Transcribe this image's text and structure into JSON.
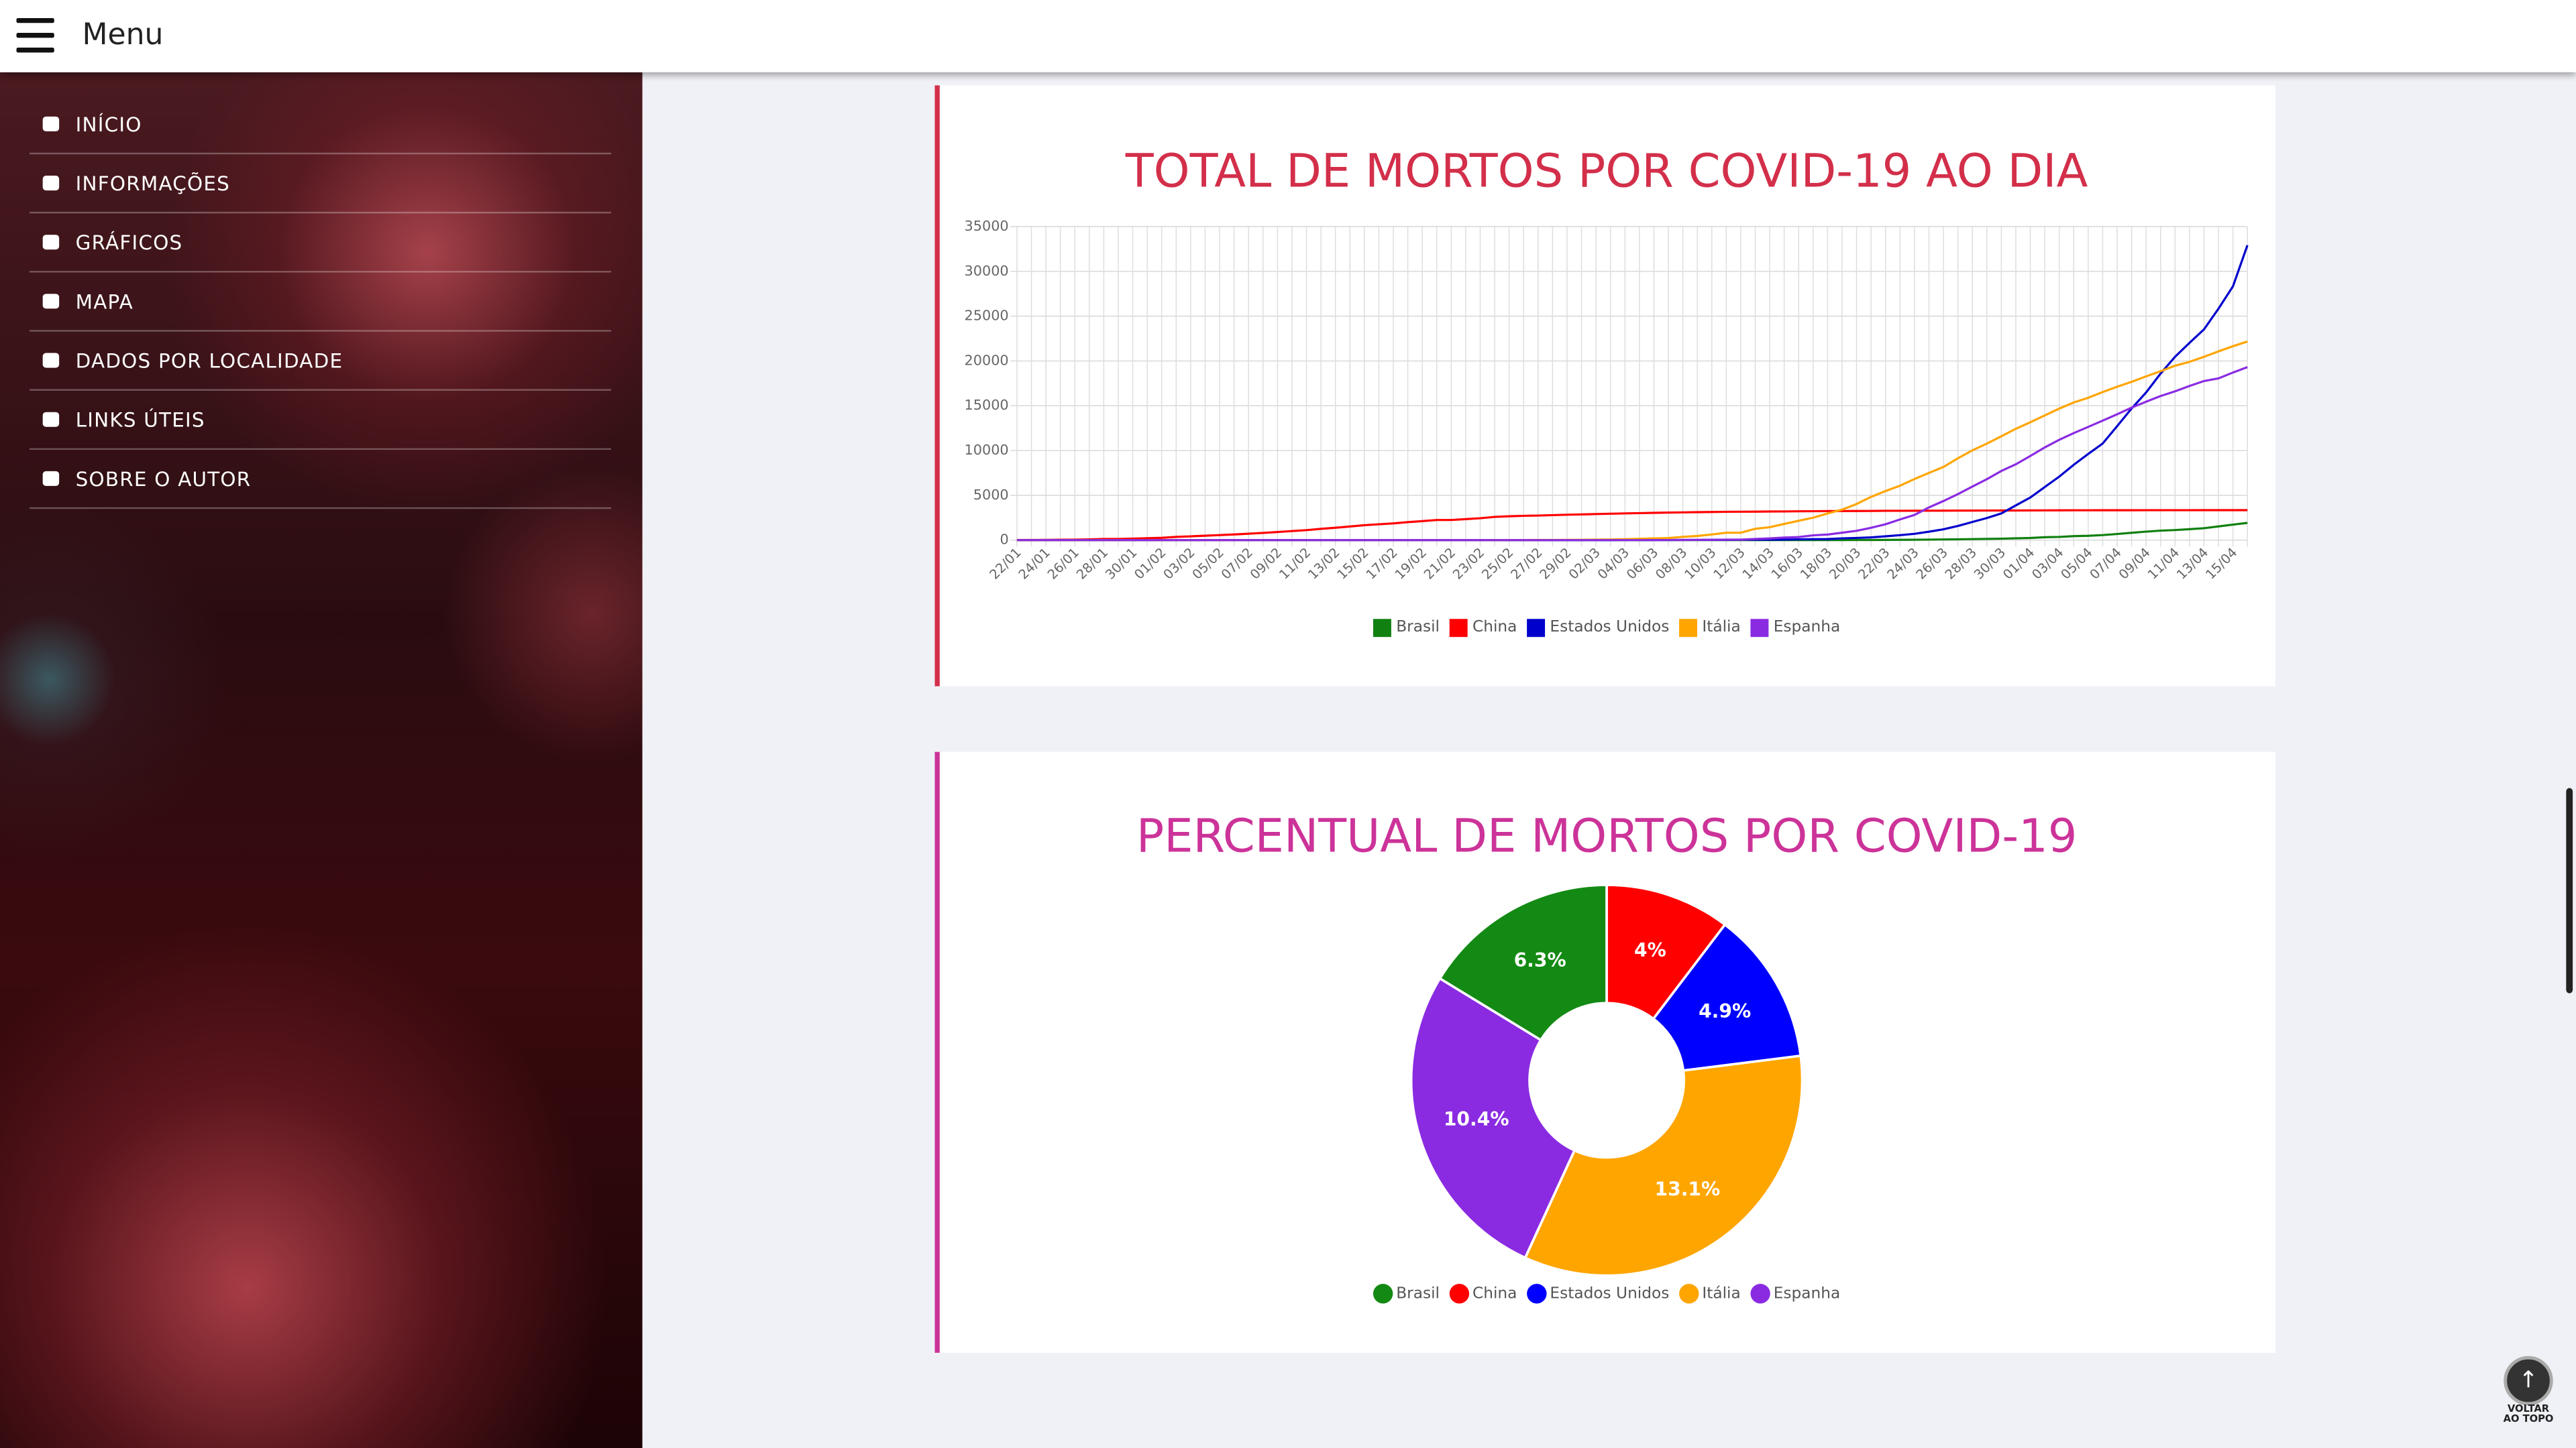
{
  "header": {
    "title": "Menu"
  },
  "nav": {
    "items": [
      "INÍCIO",
      "INFORMAÇÕES",
      "GRÁFICOS",
      "MAPA",
      "DADOS POR LOCALIDADE",
      "LINKS ÚTEIS",
      "SOBRE O AUTOR"
    ]
  },
  "back_to_top": [
    "VOLTAR",
    "AO TOPO"
  ],
  "chart_data": [
    {
      "type": "line",
      "title": "TOTAL DE MORTOS POR COVID-19 AO DIA",
      "categories": [
        "22/01",
        null,
        "24/01",
        null,
        "26/01",
        null,
        "28/01",
        null,
        "30/01",
        null,
        "01/02",
        null,
        "03/02",
        null,
        "05/02",
        null,
        "07/02",
        null,
        "09/02",
        null,
        "11/02",
        null,
        "13/02",
        null,
        "15/02",
        null,
        "17/02",
        null,
        "19/02",
        null,
        "21/02",
        null,
        "23/02",
        null,
        "25/02",
        null,
        "27/02",
        null,
        "29/02",
        null,
        "02/03",
        null,
        "04/03",
        null,
        "06/03",
        null,
        "08/03",
        null,
        "10/03",
        null,
        "12/03",
        null,
        "14/03",
        null,
        "16/03",
        null,
        "18/03",
        null,
        "20/03",
        null,
        "22/03",
        null,
        "24/03",
        null,
        "26/03",
        null,
        "28/03",
        null,
        "30/03",
        null,
        "01/04",
        null,
        "03/04",
        null,
        "05/04",
        null,
        "07/04",
        null,
        "09/04",
        null,
        "11/04",
        null,
        "13/04",
        null,
        "15/04",
        null
      ],
      "series": [
        {
          "name": "Brasil",
          "color": "#108010",
          "values": [
            0,
            0,
            0,
            0,
            0,
            0,
            0,
            0,
            0,
            0,
            0,
            0,
            0,
            0,
            0,
            0,
            0,
            0,
            0,
            0,
            0,
            0,
            0,
            0,
            0,
            0,
            0,
            0,
            0,
            0,
            0,
            0,
            0,
            0,
            0,
            0,
            0,
            0,
            0,
            0,
            0,
            0,
            0,
            0,
            0,
            0,
            0,
            0,
            0,
            0,
            0,
            0,
            0,
            0,
            0,
            1,
            3,
            6,
            11,
            15,
            25,
            34,
            46,
            59,
            77,
            92,
            111,
            136,
            159,
            201,
            240,
            324,
            359,
            445,
            486,
            564,
            686,
            819,
            950,
            1057,
            1124,
            1223,
            1328,
            1532,
            1736,
            1924
          ]
        },
        {
          "name": "China",
          "color": "#ff0000",
          "values": [
            17,
            18,
            26,
            42,
            56,
            82,
            131,
            133,
            171,
            213,
            259,
            362,
            426,
            492,
            564,
            634,
            719,
            806,
            906,
            1013,
            1113,
            1259,
            1380,
            1523,
            1665,
            1770,
            1868,
            2007,
            2122,
            2247,
            2248,
            2345,
            2443,
            2593,
            2663,
            2715,
            2744,
            2788,
            2835,
            2870,
            2912,
            2946,
            2984,
            3015,
            3045,
            3073,
            3099,
            3123,
            3140,
            3162,
            3173,
            3180,
            3194,
            3203,
            3217,
            3230,
            3241,
            3249,
            3253,
            3259,
            3274,
            3274,
            3281,
            3285,
            3291,
            3296,
            3299,
            3304,
            3308,
            3309,
            3316,
            3322,
            3326,
            3330,
            3333,
            3335,
            3335,
            3337,
            3339,
            3340,
            3343,
            3343,
            3345,
            3345,
            3346,
            3346
          ]
        },
        {
          "name": "Estados Unidos",
          "color": "#0000cc",
          "values": [
            0,
            0,
            0,
            0,
            0,
            0,
            0,
            0,
            0,
            0,
            0,
            0,
            0,
            0,
            0,
            0,
            0,
            0,
            0,
            0,
            0,
            0,
            0,
            0,
            0,
            0,
            0,
            0,
            0,
            0,
            0,
            0,
            0,
            0,
            0,
            0,
            0,
            0,
            1,
            1,
            6,
            7,
            11,
            12,
            14,
            17,
            21,
            22,
            28,
            36,
            40,
            47,
            54,
            63,
            85,
            108,
            118,
            200,
            244,
            307,
            427,
            552,
            706,
            942,
            1209,
            1581,
            2026,
            2467,
            2978,
            3873,
            4757,
            5926,
            7087,
            8407,
            9619,
            10783,
            12722,
            14695,
            16478,
            18586,
            20463,
            22020,
            23529,
            25832,
            28326,
            32916
          ]
        },
        {
          "name": "Itália",
          "color": "#ffa500",
          "values": [
            0,
            0,
            0,
            0,
            0,
            0,
            0,
            0,
            0,
            0,
            0,
            0,
            0,
            0,
            0,
            0,
            0,
            0,
            0,
            0,
            0,
            0,
            0,
            0,
            0,
            0,
            0,
            0,
            0,
            0,
            1,
            2,
            3,
            7,
            10,
            12,
            17,
            21,
            29,
            34,
            52,
            79,
            107,
            148,
            197,
            233,
            366,
            463,
            631,
            827,
            827,
            1266,
            1441,
            1809,
            2158,
            2503,
            2978,
            3405,
            4032,
            4825,
            5476,
            6077,
            6820,
            7503,
            8165,
            9134,
            10023,
            10779,
            11591,
            12428,
            13155,
            13915,
            14681,
            15362,
            15887,
            16523,
            17127,
            17669,
            18279,
            18849,
            19468,
            19899,
            20465,
            21067,
            21645,
            22170
          ]
        },
        {
          "name": "Espanha",
          "color": "#8a2be2",
          "values": [
            0,
            0,
            0,
            0,
            0,
            0,
            0,
            0,
            0,
            0,
            0,
            0,
            0,
            0,
            0,
            0,
            0,
            0,
            0,
            0,
            0,
            0,
            0,
            0,
            0,
            0,
            0,
            0,
            0,
            0,
            0,
            0,
            0,
            0,
            0,
            0,
            0,
            0,
            0,
            0,
            0,
            1,
            2,
            3,
            5,
            10,
            17,
            28,
            35,
            54,
            55,
            133,
            195,
            289,
            342,
            533,
            623,
            830,
            1043,
            1375,
            1772,
            2311,
            2808,
            3647,
            4365,
            5138,
            5982,
            6803,
            7716,
            8464,
            9387,
            10348,
            11198,
            11947,
            12641,
            13341,
            14045,
            14792,
            15447,
            16081,
            16606,
            17209,
            17756,
            18056,
            18708,
            19315
          ]
        }
      ],
      "ylim": [
        0,
        35000
      ],
      "yticks": [
        0,
        5000,
        10000,
        15000,
        20000,
        25000,
        30000,
        35000
      ],
      "grid": true
    },
    {
      "type": "doughnut",
      "title": "PERCENTUAL DE MORTOS POR COVID-19",
      "categories": [
        "Brasil",
        "China",
        "Estados Unidos",
        "Itália",
        "Espanha"
      ],
      "colors": [
        "#138a13",
        "#ff0000",
        "#0000ff",
        "#ffa500",
        "#8a2be2"
      ],
      "values": [
        6.3,
        4,
        4.9,
        13.1,
        10.4
      ],
      "value_labels": [
        "6.3%",
        "4%",
        "4.9%",
        "13.1%",
        "10.4%"
      ]
    }
  ]
}
